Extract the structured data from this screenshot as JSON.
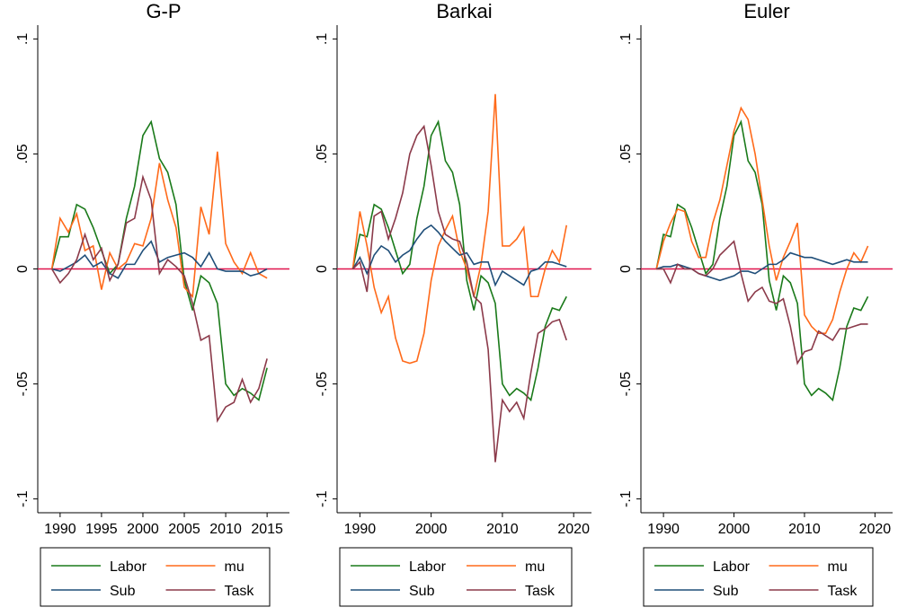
{
  "chart_data": [
    {
      "type": "line",
      "title": "G-P",
      "x": [
        1989,
        1990,
        1991,
        1992,
        1993,
        1994,
        1995,
        1996,
        1997,
        1998,
        1999,
        2000,
        2001,
        2002,
        2003,
        2004,
        2005,
        2006,
        2007,
        2008,
        2009,
        2010,
        2011,
        2012,
        2013,
        2014,
        2015
      ],
      "xlim": [
        1987.3,
        2017.7
      ],
      "xticks": [
        1990,
        1995,
        2000,
        2005,
        2010,
        2015
      ],
      "ylim": [
        -0.106,
        0.106
      ],
      "yticks": [
        {
          "value": -0.1,
          "label": "-.1"
        },
        {
          "value": -0.05,
          "label": "-.05"
        },
        0,
        {
          "value": 0.05,
          "label": ".05"
        },
        {
          "value": 0.1,
          "label": ".1"
        }
      ],
      "reference_line": {
        "value": 0,
        "color": "#e0144c"
      },
      "series": [
        {
          "name": "Labor",
          "color": "#1a7a1a",
          "values": [
            0,
            0.014,
            0.014,
            0.028,
            0.026,
            0.018,
            0.008,
            -0.002,
            0.002,
            0.022,
            0.036,
            0.058,
            0.064,
            0.048,
            0.042,
            0.028,
            -0.005,
            -0.018,
            -0.003,
            -0.006,
            -0.015,
            -0.05,
            -0.055,
            -0.052,
            -0.054,
            -0.057,
            -0.043
          ]
        },
        {
          "name": "mu",
          "color": "#ff6a1a",
          "values": [
            0,
            0.022,
            0.016,
            0.024,
            0.008,
            0.01,
            -0.009,
            0.007,
            0.0,
            0.003,
            0.011,
            0.01,
            0.022,
            0.046,
            0.03,
            0.018,
            -0.008,
            -0.012,
            0.027,
            0.015,
            0.051,
            0.011,
            0.003,
            -0.002,
            0.007,
            -0.002,
            -0.004
          ]
        },
        {
          "name": "Sub",
          "color": "#1f4e79",
          "values": [
            0,
            -0.001,
            0.001,
            0.003,
            0.006,
            0.001,
            0.003,
            -0.002,
            -0.004,
            0.002,
            0.002,
            0.008,
            0.012,
            0.003,
            0.005,
            0.006,
            0.007,
            0.005,
            0.001,
            0.007,
            0.0,
            -0.001,
            -0.001,
            -0.001,
            -0.003,
            -0.002,
            0.0
          ]
        },
        {
          "name": "Task",
          "color": "#8b3a4a",
          "values": [
            0,
            -0.006,
            -0.002,
            0.004,
            0.015,
            0.004,
            0.009,
            -0.005,
            0.002,
            0.02,
            0.022,
            0.04,
            0.03,
            -0.002,
            0.004,
            0.001,
            -0.003,
            -0.015,
            -0.031,
            -0.029,
            -0.066,
            -0.06,
            -0.058,
            -0.048,
            -0.058,
            -0.052,
            -0.039
          ]
        }
      ]
    },
    {
      "type": "line",
      "title": "Barkai",
      "x": [
        1989,
        1990,
        1991,
        1992,
        1993,
        1994,
        1995,
        1996,
        1997,
        1998,
        1999,
        2000,
        2001,
        2002,
        2003,
        2004,
        2005,
        2006,
        2007,
        2008,
        2009,
        2010,
        2011,
        2012,
        2013,
        2014,
        2015,
        2016,
        2017,
        2018,
        2019
      ],
      "xlim": [
        1986.8,
        2022.5
      ],
      "xticks": [
        1990,
        2000,
        2010,
        2020
      ],
      "ylim": [
        -0.106,
        0.106
      ],
      "yticks": [
        {
          "value": -0.1,
          "label": "-.1"
        },
        {
          "value": -0.05,
          "label": "-.05"
        },
        0,
        {
          "value": 0.05,
          "label": ".05"
        },
        {
          "value": 0.1,
          "label": ".1"
        }
      ],
      "reference_line": {
        "value": 0,
        "color": "#e0144c"
      },
      "series": [
        {
          "name": "Labor",
          "color": "#1a7a1a",
          "values": [
            0,
            0.015,
            0.014,
            0.028,
            0.026,
            0.018,
            0.008,
            -0.002,
            0.002,
            0.022,
            0.036,
            0.058,
            0.064,
            0.047,
            0.042,
            0.028,
            -0.005,
            -0.018,
            -0.003,
            -0.006,
            -0.015,
            -0.05,
            -0.055,
            -0.052,
            -0.054,
            -0.057,
            -0.043,
            -0.025,
            -0.017,
            -0.018,
            -0.012
          ]
        },
        {
          "name": "mu",
          "color": "#ff6a1a",
          "values": [
            0,
            0.025,
            0.01,
            -0.008,
            -0.019,
            -0.012,
            -0.03,
            -0.04,
            -0.041,
            -0.04,
            -0.028,
            -0.005,
            0.01,
            0.017,
            0.023,
            0.008,
            0.0,
            -0.012,
            0.002,
            0.025,
            0.076,
            0.01,
            0.01,
            0.013,
            0.018,
            -0.012,
            -0.012,
            0.0,
            0.008,
            0.003,
            0.019
          ]
        },
        {
          "name": "Sub",
          "color": "#1f4e79",
          "values": [
            0,
            0.005,
            -0.002,
            0.006,
            0.01,
            0.008,
            0.003,
            0.006,
            0.008,
            0.013,
            0.017,
            0.019,
            0.016,
            0.012,
            0.009,
            0.006,
            0.007,
            0.002,
            0.003,
            0.003,
            -0.007,
            -0.001,
            -0.003,
            -0.005,
            -0.007,
            -0.001,
            0.0,
            0.003,
            0.003,
            0.002,
            0.001
          ]
        },
        {
          "name": "Task",
          "color": "#8b3a4a",
          "values": [
            0,
            0.003,
            -0.01,
            0.023,
            0.025,
            0.013,
            0.022,
            0.033,
            0.05,
            0.058,
            0.062,
            0.045,
            0.025,
            0.015,
            0.013,
            0.012,
            0.003,
            -0.012,
            -0.015,
            -0.035,
            -0.084,
            -0.057,
            -0.062,
            -0.058,
            -0.065,
            -0.045,
            -0.028,
            -0.026,
            -0.023,
            -0.022,
            -0.031
          ]
        }
      ]
    },
    {
      "type": "line",
      "title": "Euler",
      "x": [
        1989,
        1990,
        1991,
        1992,
        1993,
        1994,
        1995,
        1996,
        1997,
        1998,
        1999,
        2000,
        2001,
        2002,
        2003,
        2004,
        2005,
        2006,
        2007,
        2008,
        2009,
        2010,
        2011,
        2012,
        2013,
        2014,
        2015,
        2016,
        2017,
        2018,
        2019
      ],
      "xlim": [
        1986.8,
        2022.5
      ],
      "xticks": [
        1990,
        2000,
        2010,
        2020
      ],
      "ylim": [
        -0.106,
        0.106
      ],
      "yticks": [
        {
          "value": -0.1,
          "label": "-.1"
        },
        {
          "value": -0.05,
          "label": "-.05"
        },
        0,
        {
          "value": 0.05,
          "label": ".05"
        },
        {
          "value": 0.1,
          "label": ".1"
        }
      ],
      "reference_line": {
        "value": 0,
        "color": "#e0144c"
      },
      "series": [
        {
          "name": "Labor",
          "color": "#1a7a1a",
          "values": [
            0,
            0.015,
            0.014,
            0.028,
            0.026,
            0.018,
            0.008,
            -0.002,
            0.002,
            0.022,
            0.036,
            0.058,
            0.064,
            0.047,
            0.042,
            0.028,
            -0.005,
            -0.018,
            -0.003,
            -0.006,
            -0.015,
            -0.05,
            -0.055,
            -0.052,
            -0.054,
            -0.057,
            -0.043,
            -0.025,
            -0.017,
            -0.018,
            -0.012
          ]
        },
        {
          "name": "mu",
          "color": "#ff6a1a",
          "values": [
            0,
            0.012,
            0.02,
            0.026,
            0.025,
            0.012,
            0.005,
            0.005,
            0.02,
            0.03,
            0.045,
            0.06,
            0.07,
            0.065,
            0.05,
            0.03,
            0.01,
            -0.005,
            0.005,
            0.012,
            0.02,
            -0.02,
            -0.025,
            -0.028,
            -0.028,
            -0.022,
            -0.01,
            0.0,
            0.007,
            0.003,
            0.01
          ]
        },
        {
          "name": "Sub",
          "color": "#1f4e79",
          "values": [
            0,
            0.001,
            0.001,
            0.002,
            0.001,
            0.0,
            -0.002,
            -0.003,
            -0.004,
            -0.005,
            -0.004,
            -0.003,
            -0.001,
            -0.001,
            -0.002,
            0.0,
            0.002,
            0.002,
            0.004,
            0.007,
            0.006,
            0.005,
            0.005,
            0.004,
            0.003,
            0.002,
            0.003,
            0.004,
            0.003,
            0.003,
            0.003
          ]
        },
        {
          "name": "Task",
          "color": "#8b3a4a",
          "values": [
            0,
            0.0,
            -0.006,
            0.002,
            0.0,
            0.0,
            -0.002,
            -0.003,
            0.0,
            0.006,
            0.009,
            0.012,
            -0.002,
            -0.014,
            -0.01,
            -0.008,
            -0.014,
            -0.015,
            -0.013,
            -0.025,
            -0.041,
            -0.036,
            -0.035,
            -0.027,
            -0.029,
            -0.031,
            -0.026,
            -0.026,
            -0.025,
            -0.024,
            -0.024
          ]
        }
      ]
    }
  ]
}
